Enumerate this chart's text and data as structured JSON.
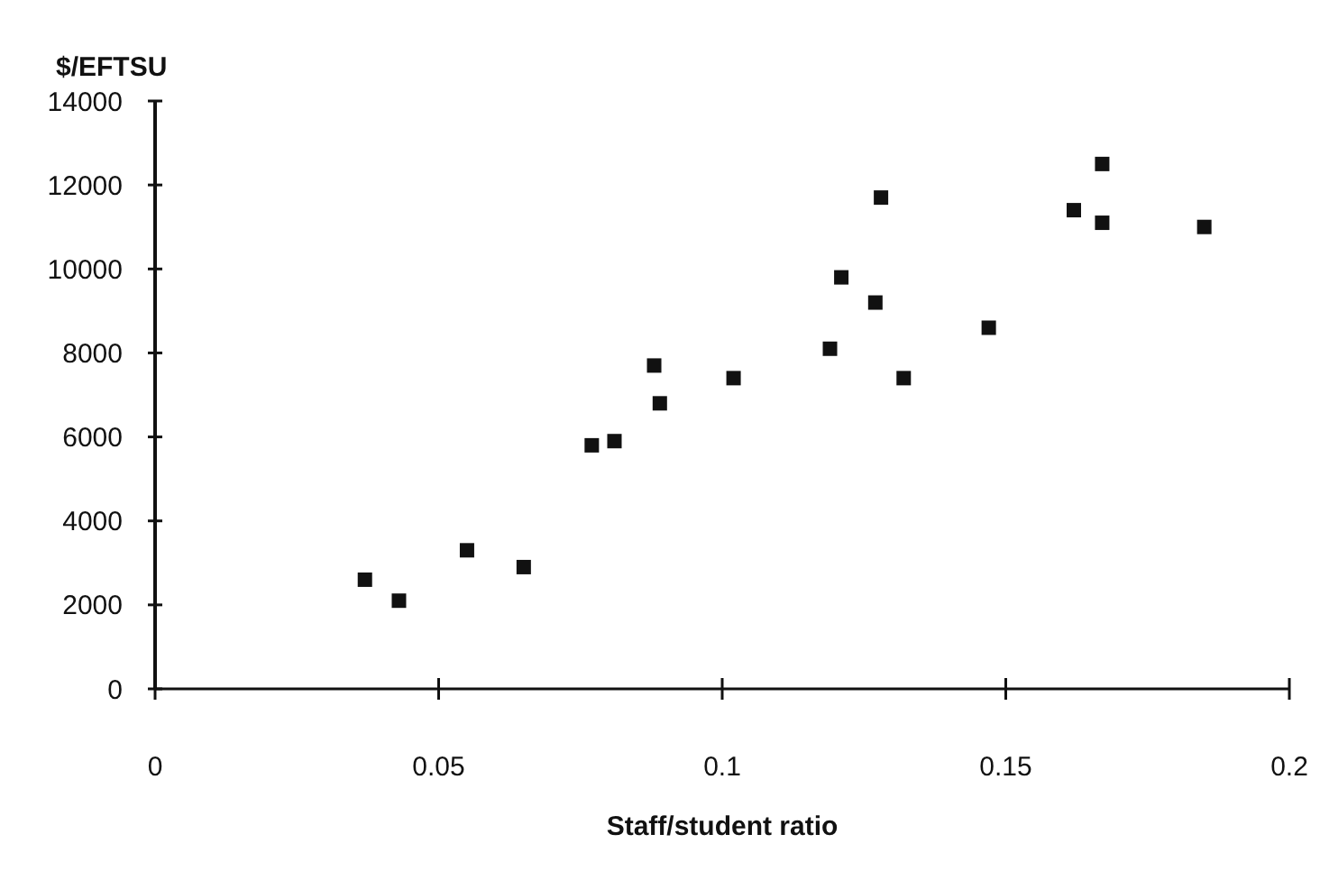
{
  "chart_data": {
    "type": "scatter",
    "ylabel": "$/EFTSU",
    "xlabel": "Staff/student ratio",
    "x": [
      0.037,
      0.043,
      0.055,
      0.065,
      0.077,
      0.081,
      0.088,
      0.089,
      0.102,
      0.119,
      0.121,
      0.127,
      0.128,
      0.132,
      0.147,
      0.162,
      0.167,
      0.167,
      0.185
    ],
    "values": [
      2600,
      2100,
      3300,
      2900,
      5800,
      5900,
      7700,
      6800,
      7400,
      8100,
      9800,
      9200,
      11700,
      7400,
      8600,
      11400,
      12500,
      11100,
      11000
    ],
    "color": "#111111",
    "marker": "square",
    "xlim": [
      0,
      0.2
    ],
    "xticks": [
      0,
      0.05,
      0.1,
      0.15,
      0.2
    ],
    "ylim": [
      0,
      14000
    ],
    "yticks": [
      0,
      2000,
      4000,
      6000,
      8000,
      10000,
      12000,
      14000
    ],
    "grid": false
  }
}
